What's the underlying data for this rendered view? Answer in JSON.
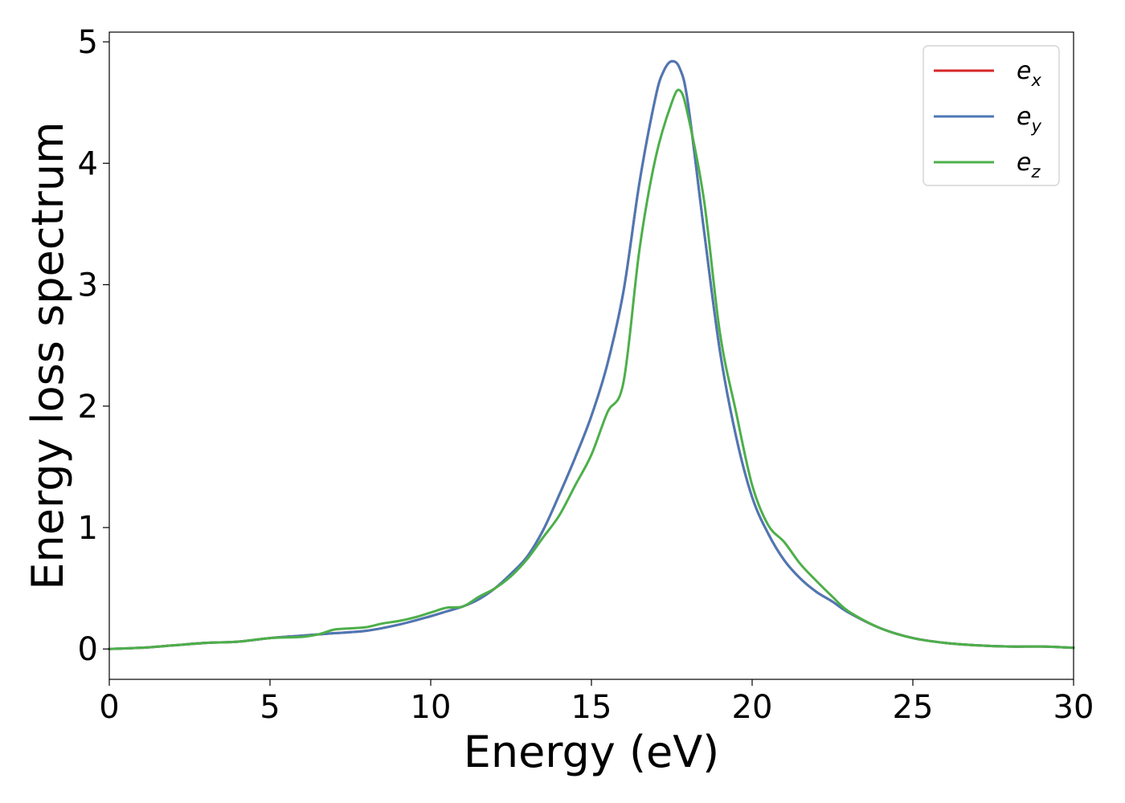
{
  "chart_data": {
    "type": "line",
    "xlabel": "Energy (eV)",
    "ylabel": "Energy loss spectrum",
    "xlim": [
      0,
      30
    ],
    "ylim": [
      -0.25,
      5.08
    ],
    "xticks": [
      0,
      5,
      10,
      15,
      20,
      25,
      30
    ],
    "yticks": [
      0,
      1,
      2,
      3,
      4,
      5
    ],
    "grid": false,
    "legend_position": "top-right",
    "series": [
      {
        "name": "e_x",
        "legend_base": "e",
        "legend_sub": "x",
        "color": "#d62728",
        "x": [
          0,
          1,
          2,
          3,
          4,
          5,
          6,
          7,
          8,
          9,
          10,
          10.5,
          11,
          11.5,
          12,
          12.5,
          13,
          13.5,
          14,
          14.5,
          15,
          15.5,
          16,
          16.5,
          17,
          17.25,
          17.5,
          17.75,
          18,
          18.5,
          19,
          19.5,
          20,
          20.5,
          21,
          21.5,
          22,
          22.5,
          23,
          24,
          25,
          26,
          27,
          28,
          29,
          30
        ],
        "y": [
          0,
          0.01,
          0.03,
          0.05,
          0.06,
          0.09,
          0.11,
          0.13,
          0.15,
          0.2,
          0.27,
          0.31,
          0.35,
          0.41,
          0.5,
          0.62,
          0.76,
          0.98,
          1.27,
          1.58,
          1.92,
          2.35,
          2.95,
          3.85,
          4.55,
          4.76,
          4.84,
          4.78,
          4.5,
          3.45,
          2.45,
          1.75,
          1.25,
          0.95,
          0.73,
          0.58,
          0.47,
          0.39,
          0.3,
          0.17,
          0.09,
          0.05,
          0.03,
          0.02,
          0.02,
          0.01
        ]
      },
      {
        "name": "e_y",
        "legend_base": "e",
        "legend_sub": "y",
        "color": "#4c78b5",
        "x": [
          0,
          1,
          2,
          3,
          4,
          5,
          6,
          7,
          8,
          9,
          10,
          10.5,
          11,
          11.5,
          12,
          12.5,
          13,
          13.5,
          14,
          14.5,
          15,
          15.5,
          16,
          16.5,
          17,
          17.25,
          17.5,
          17.75,
          18,
          18.5,
          19,
          19.5,
          20,
          20.5,
          21,
          21.5,
          22,
          22.5,
          23,
          24,
          25,
          26,
          27,
          28,
          29,
          30
        ],
        "y": [
          0,
          0.01,
          0.03,
          0.05,
          0.06,
          0.09,
          0.11,
          0.13,
          0.15,
          0.2,
          0.27,
          0.31,
          0.35,
          0.41,
          0.5,
          0.62,
          0.76,
          0.98,
          1.27,
          1.58,
          1.92,
          2.35,
          2.95,
          3.85,
          4.55,
          4.76,
          4.84,
          4.78,
          4.5,
          3.45,
          2.45,
          1.75,
          1.25,
          0.95,
          0.73,
          0.58,
          0.47,
          0.39,
          0.3,
          0.17,
          0.09,
          0.05,
          0.03,
          0.02,
          0.02,
          0.01
        ]
      },
      {
        "name": "e_z",
        "legend_base": "e",
        "legend_sub": "z",
        "color": "#4daf4a",
        "x": [
          0,
          1,
          2,
          3,
          4,
          5,
          6,
          6.5,
          7,
          7.5,
          8,
          8.5,
          9,
          9.5,
          10,
          10.5,
          11,
          11.5,
          12,
          12.5,
          13,
          13.5,
          14,
          14.5,
          15,
          15.5,
          16,
          16.5,
          17,
          17.5,
          17.75,
          18,
          18.5,
          19,
          19.5,
          20,
          20.5,
          21,
          21.5,
          22,
          22.5,
          23,
          24,
          25,
          26,
          27,
          28,
          29,
          30
        ],
        "y": [
          0,
          0.01,
          0.03,
          0.05,
          0.06,
          0.09,
          0.1,
          0.12,
          0.16,
          0.17,
          0.18,
          0.21,
          0.23,
          0.26,
          0.3,
          0.34,
          0.35,
          0.43,
          0.5,
          0.6,
          0.74,
          0.92,
          1.1,
          1.35,
          1.6,
          1.95,
          2.2,
          3.3,
          4.05,
          4.5,
          4.6,
          4.4,
          3.7,
          2.6,
          1.95,
          1.35,
          1.02,
          0.88,
          0.7,
          0.56,
          0.43,
          0.31,
          0.17,
          0.09,
          0.05,
          0.03,
          0.02,
          0.02,
          0.01
        ]
      }
    ]
  }
}
